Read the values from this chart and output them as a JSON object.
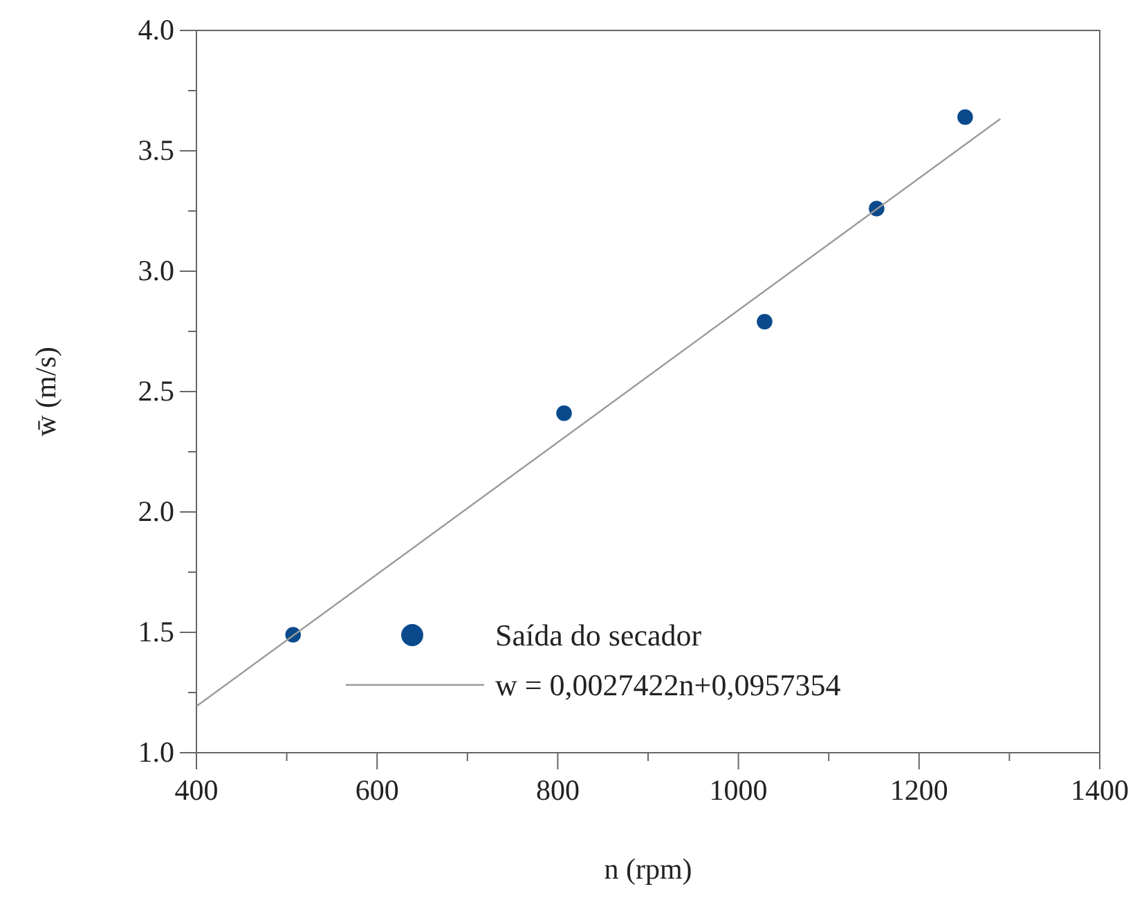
{
  "chart_data": {
    "type": "scatter",
    "xlabel": "n (rpm)",
    "ylabel": "w̄ (m/s)",
    "x": [
      507,
      807,
      1029,
      1153,
      1251
    ],
    "series": [
      {
        "name": "Saída do secador",
        "marker": "circle",
        "color": "#0a4a8c",
        "values": [
          1.49,
          2.41,
          2.79,
          3.26,
          3.64
        ]
      },
      {
        "name": "w = 0,0027422n+0,0957354",
        "type": "line",
        "marker": "none",
        "color": "#9a9a9a",
        "x": [
          400,
          1290
        ],
        "values": [
          1.193,
          3.633
        ]
      }
    ],
    "xlim": [
      400,
      1400
    ],
    "xticks": [
      400,
      {
        "value": 500,
        "label": null
      },
      600,
      {
        "value": 700,
        "label": null
      },
      800,
      {
        "value": 900,
        "label": null
      },
      1000,
      {
        "value": 1100,
        "label": null
      },
      1200,
      {
        "value": 1300,
        "label": null
      },
      1400
    ],
    "ylim": [
      1,
      4
    ],
    "yticks": [
      {
        "value": 1,
        "label": "1.0"
      },
      {
        "value": 1.25,
        "label": null
      },
      {
        "value": 1.5,
        "label": "1.5"
      },
      {
        "value": 1.75,
        "label": null
      },
      {
        "value": 2,
        "label": "2.0"
      },
      {
        "value": 2.25,
        "label": null
      },
      {
        "value": 2.5,
        "label": "2.5"
      },
      {
        "value": 2.75,
        "label": null
      },
      {
        "value": 3,
        "label": "3.0"
      },
      {
        "value": 3.25,
        "label": null
      },
      {
        "value": 3.5,
        "label": "3.5"
      },
      {
        "value": 3.75,
        "label": null
      },
      {
        "value": 4,
        "label": "4.0"
      }
    ],
    "grid": false,
    "legend": "bottom",
    "line_style": "solid"
  }
}
